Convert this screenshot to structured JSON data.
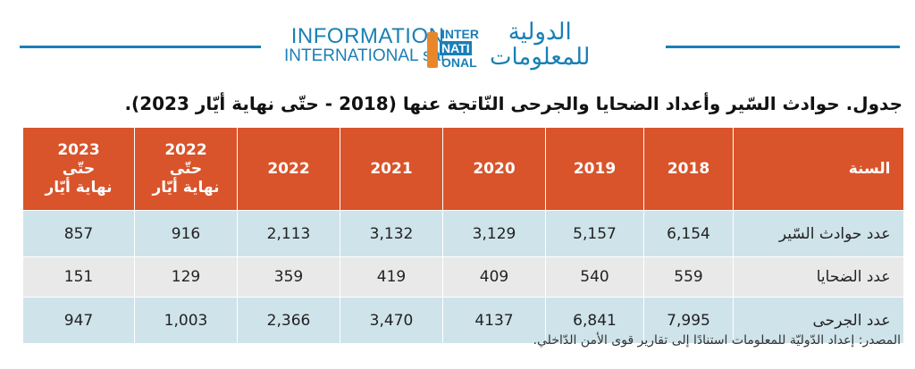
{
  "header": {
    "logo_en": [
      "INFORMATION",
      "INTERNATIONAL sal"
    ],
    "logo_mark": [
      "INTER",
      "NATI",
      "ONAL"
    ],
    "logo_ar": [
      "الدولية",
      "للمعلومات"
    ]
  },
  "title": "جدول. حوادث السّير وأعداد الضحايا والجرحى النّاتجة عنها (2018 - حتّى نهاية أيّار 2023).",
  "table": {
    "columns": [
      [
        "السنة"
      ],
      [
        "2018"
      ],
      [
        "2019"
      ],
      [
        "2020"
      ],
      [
        "2021"
      ],
      [
        "2022"
      ],
      [
        "2022",
        "حتّى",
        "نهاية أيّار"
      ],
      [
        "2023",
        "حتّى",
        "نهاية أيّار"
      ]
    ],
    "rows": [
      [
        "عدد حوادث السّير",
        "6,154",
        "5,157",
        "3,129",
        "3,132",
        "2,113",
        "916",
        "857"
      ],
      [
        "عدد الضحايا",
        "559",
        "540",
        "409",
        "419",
        "359",
        "129",
        "151"
      ],
      [
        "عدد الجرحى",
        "7,995",
        "6,841",
        "4137",
        "3,470",
        "2,366",
        "1,003",
        "947"
      ]
    ]
  },
  "source": "المصدر: إعداد الدّوليّة للمعلومات استنادًا إلى تقارير قوى الأمن الدّاخلي."
}
